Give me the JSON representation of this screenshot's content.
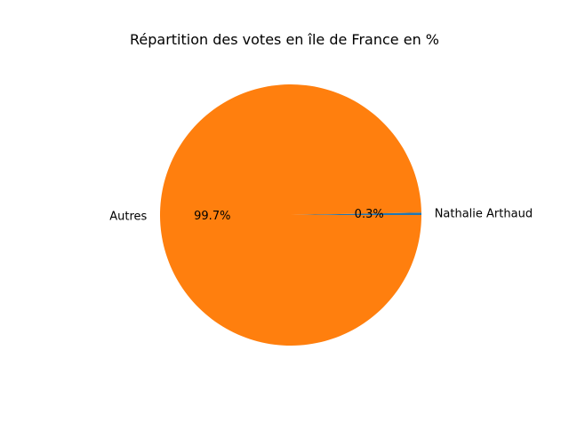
{
  "chart_data": {
    "type": "pie",
    "title": "Répartition des votes en île de France en %",
    "labels": [
      "Nathalie Arthaud",
      "Autres"
    ],
    "values": [
      0.3,
      99.7
    ],
    "percent_labels": [
      "0.3%",
      "99.7%"
    ],
    "colors": [
      "#1f77b4",
      "#ff7f0e"
    ],
    "start_angle_deg": 0,
    "direction": "counterclockwise",
    "legend": "none"
  }
}
